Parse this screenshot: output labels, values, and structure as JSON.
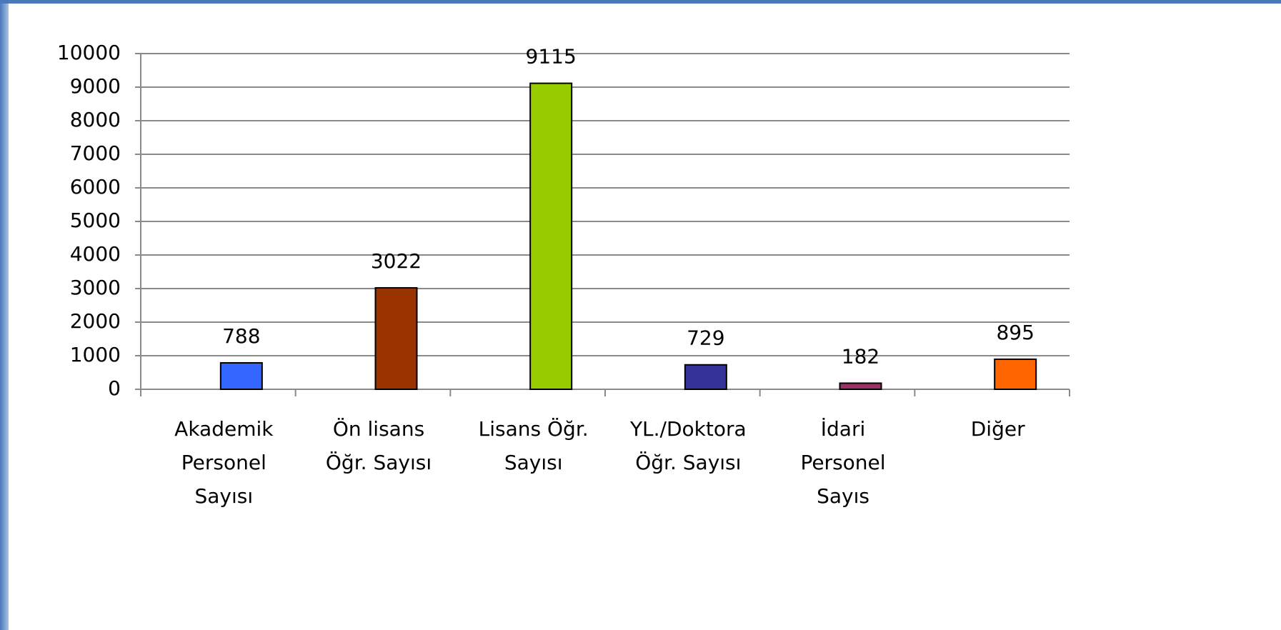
{
  "chart_data": {
    "type": "bar",
    "categories": [
      [
        "Akademik",
        "Personel",
        "Sayısı"
      ],
      [
        "Ön lisans",
        "Öğr. Sayısı"
      ],
      [
        "Lisans Öğr.",
        "Sayısı"
      ],
      [
        "YL./Doktora",
        "Öğr. Sayısı"
      ],
      [
        "İdari",
        "Personel",
        "Sayıs"
      ],
      [
        "Diğer"
      ]
    ],
    "values": [
      788,
      3022,
      9115,
      729,
      182,
      895
    ],
    "colors": [
      "#3366ff",
      "#993300",
      "#99cc00",
      "#333399",
      "#993366",
      "#ff6600"
    ],
    "ylim": [
      0,
      10000
    ],
    "yticks": [
      0,
      1000,
      2000,
      3000,
      4000,
      5000,
      6000,
      7000,
      8000,
      9000,
      10000
    ],
    "grid": true
  }
}
